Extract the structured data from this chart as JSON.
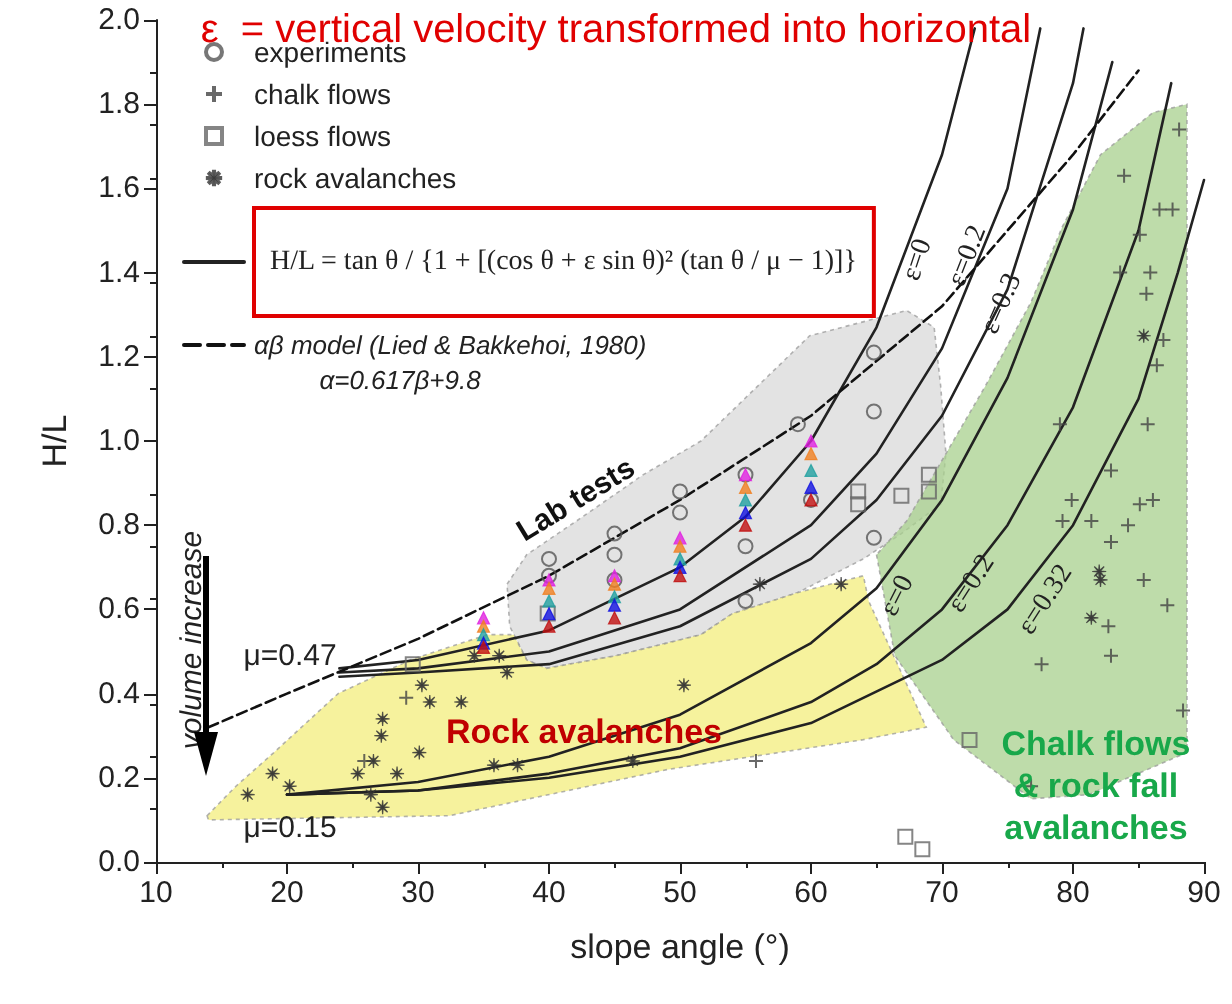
{
  "chart_data": {
    "type": "scatter",
    "title": "ε  = vertical velocity transformed into horizontal",
    "xlabel": "slope angle (°)",
    "ylabel": "H/L",
    "xlim": [
      10,
      90
    ],
    "xticks": [
      10,
      20,
      30,
      40,
      50,
      60,
      70,
      80,
      90
    ],
    "ylim": [
      0,
      2
    ],
    "yticks": [
      {
        "value": 0,
        "label": "0.0"
      },
      0.2,
      0.4,
      0.6,
      0.8,
      {
        "value": 1,
        "label": "1.0"
      },
      1.2,
      1.4,
      1.6,
      1.8,
      {
        "value": 2,
        "label": "2.0"
      }
    ],
    "grid": false,
    "legend": "top left",
    "series": [
      {
        "type": "area",
        "color": "#d9d9d9",
        "x": [
          36.8,
          38.3,
          42.1,
          47.2,
          51.6,
          59.9,
          67.3,
          69.4,
          69.9,
          70.3,
          69.9,
          66.9,
          64,
          59,
          54,
          51.6,
          45.1,
          39.8,
          38.3,
          37
        ],
        "values": [
          0.66,
          0.73,
          0.81,
          0.92,
          1.0,
          1.25,
          1.31,
          1.27,
          1.13,
          0.97,
          0.85,
          0.78,
          0.72,
          0.64,
          0.59,
          0.54,
          0.49,
          0.46,
          0.48,
          0.56
        ]
      },
      {
        "type": "area",
        "color": "#f3ee7c",
        "x": [
          13.9,
          16.1,
          19,
          23.9,
          29.4,
          35.3,
          37.3,
          38.3,
          39.8,
          45.1,
          51.6,
          54,
          59,
          64,
          64.4,
          68.8,
          63.9,
          49.1,
          32.4,
          14
        ],
        "values": [
          0.11,
          0.18,
          0.26,
          0.4,
          0.48,
          0.54,
          0.54,
          0.48,
          0.46,
          0.49,
          0.54,
          0.59,
          0.64,
          0.68,
          0.62,
          0.32,
          0.29,
          0.22,
          0.11,
          0.1
        ]
      },
      {
        "type": "area",
        "color": "#a8d08d",
        "x": [
          65,
          66.4,
          70.9,
          76.8,
          81.2,
          88.7,
          88.7,
          86.1,
          82.1,
          79.2,
          76.8,
          73.3,
          67.3
        ],
        "values": [
          0.73,
          0.49,
          0.29,
          0.15,
          0.16,
          0.26,
          1.8,
          1.78,
          1.68,
          1.51,
          1.33,
          1.13,
          0.81
        ]
      },
      {
        "name": "experiments",
        "marker": "circle",
        "color": "#555555",
        "x": [
          40,
          40,
          45,
          45,
          45,
          50,
          50,
          55,
          55,
          55,
          59,
          60,
          64.8,
          64.8,
          64.8
        ],
        "values": [
          0.68,
          0.72,
          0.78,
          0.73,
          0.67,
          0.88,
          0.83,
          0.92,
          0.75,
          0.62,
          1.04,
          0.86,
          1.21,
          1.07,
          0.77
        ]
      },
      {
        "name": "chalk flows",
        "marker": "cross",
        "color": "#444444",
        "x": [
          79,
          85.7,
          82.9,
          79.9,
          79.2,
          81.4,
          84.2,
          86.1,
          85.1,
          82.9,
          85.4,
          87.2,
          82.7,
          82.9,
          77.6,
          88.4,
          55.8,
          76.8,
          83.9,
          86.6,
          87.6,
          85.1,
          83.6,
          85.9,
          85.6,
          86.9,
          86.4,
          88.1,
          29.1,
          25.9
        ],
        "values": [
          1.04,
          1.04,
          0.93,
          0.86,
          0.81,
          0.81,
          0.8,
          0.86,
          0.85,
          0.76,
          0.67,
          0.61,
          0.56,
          0.49,
          0.47,
          0.36,
          0.24,
          0.18,
          1.63,
          1.55,
          1.55,
          1.49,
          1.4,
          1.4,
          1.35,
          1.24,
          1.18,
          1.74,
          0.39,
          0.24
        ]
      },
      {
        "name": "loess flows",
        "marker": "square",
        "color": "#666666",
        "x": [
          29.6,
          39.9,
          63.6,
          63.6,
          66.9,
          69,
          69,
          72.1,
          67.2,
          68.5
        ],
        "values": [
          0.47,
          0.59,
          0.88,
          0.85,
          0.87,
          0.88,
          0.92,
          0.29,
          0.06,
          0.03
        ]
      },
      {
        "name": "rock avalanches",
        "marker": "star",
        "color": "#333333",
        "x": [
          17,
          18.9,
          20.2,
          26.4,
          27.3,
          26.6,
          25.4,
          27.2,
          27.3,
          30.3,
          30.9,
          30.1,
          28.4,
          33.3,
          34.3,
          36.2,
          36.8,
          35.8,
          37.6,
          46.4,
          50.3,
          56.1,
          62.3,
          82,
          82.1,
          81.4,
          85.4
        ],
        "values": [
          0.16,
          0.21,
          0.18,
          0.16,
          0.13,
          0.24,
          0.21,
          0.3,
          0.34,
          0.42,
          0.38,
          0.26,
          0.21,
          0.38,
          0.49,
          0.49,
          0.45,
          0.23,
          0.23,
          0.24,
          0.42,
          0.66,
          0.66,
          0.69,
          0.67,
          0.58,
          1.25
        ]
      },
      {
        "marker": "triangle",
        "x": [
          35,
          35,
          35,
          35,
          35,
          40,
          40,
          40,
          40,
          40,
          45,
          45,
          45,
          45,
          45,
          50,
          50,
          50,
          50,
          50,
          55,
          55,
          55,
          55,
          55,
          60,
          60,
          60,
          60,
          60
        ],
        "values": [
          0.58,
          0.56,
          0.54,
          0.52,
          0.51,
          0.67,
          0.65,
          0.62,
          0.59,
          0.56,
          0.68,
          0.66,
          0.63,
          0.61,
          0.58,
          0.77,
          0.75,
          0.72,
          0.7,
          0.68,
          0.92,
          0.89,
          0.86,
          0.83,
          0.8,
          1.0,
          0.97,
          0.93,
          0.89,
          0.86
        ],
        "colors": [
          "#e020e0",
          "#f08020",
          "#20a0a0",
          "#1010e0",
          "#c01010",
          "#e020e0",
          "#f08020",
          "#20a0a0",
          "#1010e0",
          "#c01010",
          "#e020e0",
          "#f08020",
          "#20a0a0",
          "#1010e0",
          "#c01010",
          "#e020e0",
          "#f08020",
          "#20a0a0",
          "#1010e0",
          "#c01010",
          "#e020e0",
          "#f08020",
          "#20a0a0",
          "#1010e0",
          "#c01010",
          "#e020e0",
          "#f08020",
          "#20a0a0",
          "#1010e0",
          "#c01010"
        ]
      },
      {
        "type": "line",
        "name": "H/L = tan θ / {1 + [(cos θ + ε sin θ)² (tan θ / μ − 1)]}",
        "color": "#222222",
        "marker": "none",
        "line_style": "solid",
        "x": [
          24,
          30,
          40,
          50,
          55,
          60,
          65,
          70,
          72.5
        ],
        "values": [
          0.46,
          0.48,
          0.55,
          0.7,
          0.82,
          1.0,
          1.27,
          1.68,
          1.98
        ]
      },
      {
        "type": "line",
        "color": "#222222",
        "marker": "none",
        "line_style": "solid",
        "x": [
          24,
          30,
          40,
          50,
          60,
          65,
          70,
          75,
          77.5
        ],
        "values": [
          0.45,
          0.46,
          0.5,
          0.6,
          0.8,
          0.97,
          1.22,
          1.6,
          1.98
        ]
      },
      {
        "type": "line",
        "color": "#222222",
        "marker": "none",
        "line_style": "solid",
        "x": [
          24,
          30,
          40,
          50,
          60,
          65,
          70,
          75,
          80,
          80.8
        ],
        "values": [
          0.44,
          0.45,
          0.47,
          0.56,
          0.72,
          0.86,
          1.06,
          1.36,
          1.85,
          1.98
        ]
      },
      {
        "type": "line",
        "color": "#222222",
        "marker": "none",
        "line_style": "solid",
        "x": [
          20,
          30,
          40,
          50,
          60,
          65,
          70,
          75,
          80,
          83
        ],
        "values": [
          0.16,
          0.19,
          0.25,
          0.35,
          0.52,
          0.65,
          0.86,
          1.15,
          1.55,
          1.9
        ]
      },
      {
        "type": "line",
        "color": "#222222",
        "marker": "none",
        "line_style": "solid",
        "x": [
          20,
          30,
          40,
          50,
          60,
          65,
          70,
          75,
          80,
          85,
          87.5
        ],
        "values": [
          0.16,
          0.17,
          0.21,
          0.27,
          0.38,
          0.47,
          0.6,
          0.8,
          1.08,
          1.5,
          1.85
        ]
      },
      {
        "type": "line",
        "color": "#222222",
        "marker": "none",
        "line_style": "solid",
        "x": [
          20,
          30,
          40,
          50,
          60,
          70,
          75,
          80,
          85,
          88,
          90
        ],
        "values": [
          0.16,
          0.17,
          0.2,
          0.25,
          0.33,
          0.48,
          0.6,
          0.8,
          1.1,
          1.4,
          1.62
        ]
      },
      {
        "type": "line",
        "name": "αβ model (Lied & Bakkehoi, 1980)",
        "color": "#111111",
        "marker": "none",
        "line_style": "dashed",
        "x": [
          14,
          20,
          30,
          40,
          50,
          60,
          70,
          80,
          85
        ],
        "values": [
          0.32,
          0.4,
          0.53,
          0.68,
          0.86,
          1.06,
          1.32,
          1.68,
          1.88
        ]
      }
    ],
    "annotations": [
      "ε=0",
      "ε=0.2",
      "ε=0.3",
      "ε=0",
      "ε=0.2",
      "ε=0.32",
      "μ=0.47",
      "μ=0.15",
      "Lab tests",
      "Rock avalanches",
      "Chalk flows\n& rock fall\navalanches",
      "α=0.617β+9.8",
      "volume increase"
    ]
  }
}
